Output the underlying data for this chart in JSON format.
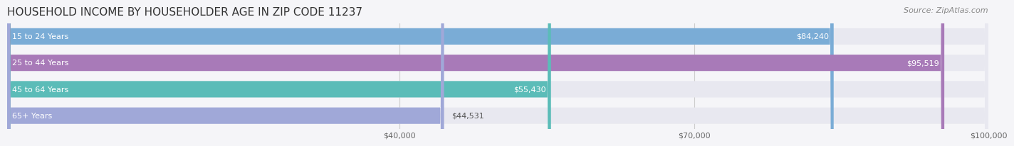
{
  "title": "HOUSEHOLD INCOME BY HOUSEHOLDER AGE IN ZIP CODE 11237",
  "source": "Source: ZipAtlas.com",
  "categories": [
    "15 to 24 Years",
    "25 to 44 Years",
    "45 to 64 Years",
    "65+ Years"
  ],
  "values": [
    84240,
    95519,
    55430,
    44531
  ],
  "labels": [
    "$84,240",
    "$95,519",
    "$55,430",
    "$44,531"
  ],
  "colors": [
    "#7aacd6",
    "#a87ab8",
    "#5bbcb8",
    "#a0a8d8"
  ],
  "bar_bg_color": "#e8e8f0",
  "xlim": [
    0,
    100000
  ],
  "xticks": [
    40000,
    70000,
    100000
  ],
  "xticklabels": [
    "$40,000",
    "$70,000",
    "$100,000"
  ],
  "title_fontsize": 11,
  "source_fontsize": 8,
  "background_color": "#f5f5f8"
}
